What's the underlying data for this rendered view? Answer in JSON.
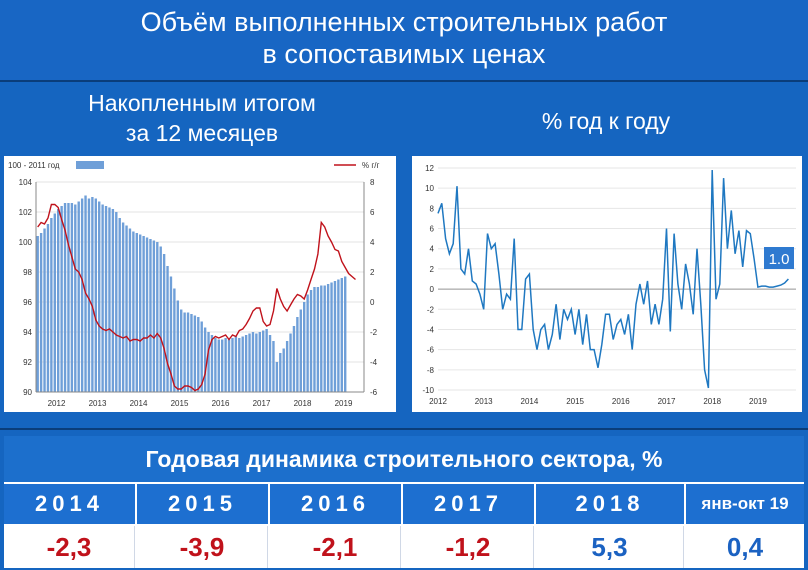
{
  "header": {
    "title_line1": "Объём выполненных строительных работ",
    "title_line2": "в сопоставимых ценах"
  },
  "left_panel": {
    "subtitle_line1": "Накопленным итогом",
    "subtitle_line2": "за 12 месяцев"
  },
  "right_panel": {
    "subtitle": "% год к году"
  },
  "colors": {
    "background": "#1565c0",
    "bar_fill": "#6f9fd8",
    "red_line": "#c0121b",
    "blue_line": "#1f78c1",
    "badge": "#2f7ad0",
    "negative_value": "#c0121b",
    "positive_value": "#1b62c2"
  },
  "chart_data": [
    {
      "type": "bar",
      "legend_left": "100 - 2011 год",
      "legend_right": "% г/г",
      "x_tick_labels": [
        "2012",
        "2013",
        "2014",
        "2015",
        "2016",
        "2017",
        "2018",
        "2019"
      ],
      "left_axis": {
        "ylim": [
          90,
          104
        ],
        "ticks": [
          "90",
          "92",
          "94",
          "96",
          "98",
          "100",
          "102",
          "104"
        ]
      },
      "right_axis": {
        "ylim": [
          -6,
          8
        ],
        "ticks": [
          "-6",
          "-4",
          "-2",
          "0",
          "2",
          "4",
          "6",
          "8"
        ]
      },
      "grid": true,
      "bars": {
        "name": "100 - 2011 год",
        "start": "2012-01",
        "frequency": "monthly",
        "values": [
          100.4,
          100.6,
          100.9,
          101.2,
          101.6,
          101.9,
          102.2,
          102.4,
          102.6,
          102.6,
          102.6,
          102.5,
          102.7,
          102.9,
          103.1,
          102.9,
          103.0,
          102.9,
          102.7,
          102.5,
          102.4,
          102.3,
          102.2,
          102.0,
          101.6,
          101.3,
          101.1,
          100.9,
          100.7,
          100.6,
          100.5,
          100.4,
          100.3,
          100.2,
          100.1,
          100.0,
          99.7,
          99.2,
          98.4,
          97.7,
          96.9,
          96.1,
          95.5,
          95.3,
          95.3,
          95.2,
          95.1,
          95.0,
          94.7,
          94.3,
          94.0,
          93.8,
          93.6,
          93.5,
          93.5,
          93.6,
          93.5,
          93.6,
          93.7,
          93.6,
          93.7,
          93.8,
          93.9,
          94.0,
          93.9,
          94.0,
          94.1,
          94.2,
          93.8,
          93.4,
          92.0,
          92.6,
          92.9,
          93.4,
          93.9,
          94.4,
          95.0,
          95.5,
          96.0,
          96.5,
          96.8,
          97.0,
          97.0,
          97.1,
          97.1,
          97.2,
          97.3,
          97.4,
          97.5,
          97.6,
          97.7
        ]
      },
      "line": {
        "name": "% г/г",
        "start": "2012-01",
        "frequency": "monthly",
        "values": [
          5.0,
          5.3,
          5.2,
          5.6,
          6.5,
          6.5,
          6.3,
          5.5,
          4.8,
          3.8,
          3.0,
          2.2,
          2.0,
          1.5,
          0.6,
          0.2,
          -0.3,
          -1.2,
          -1.6,
          -1.8,
          -1.9,
          -1.8,
          -2.0,
          -2.2,
          -2.3,
          -2.4,
          -2.3,
          -2.6,
          -2.5,
          -2.5,
          -2.6,
          -2.4,
          -2.4,
          -2.2,
          -2.4,
          -2.1,
          -2.4,
          -3.1,
          -4.1,
          -4.8,
          -5.6,
          -5.8,
          -5.8,
          -5.6,
          -5.6,
          -5.7,
          -5.9,
          -5.8,
          -5.5,
          -4.8,
          -3.2,
          -2.5,
          -2.3,
          -2.4,
          -2.3,
          -2.2,
          -2.5,
          -2.2,
          -2.3,
          -1.9,
          -1.8,
          -1.5,
          -1.1,
          -0.6,
          -0.4,
          -0.4,
          -1.3,
          -1.6,
          -1.5,
          -0.6,
          0.9,
          0.2,
          -0.3,
          -0.6,
          -0.2,
          0.2,
          0.5,
          0.4,
          0.2,
          0.8,
          1.5,
          2.2,
          3.2,
          5.3,
          5.0,
          4.4,
          4.0,
          3.5,
          3.4,
          2.7,
          2.3,
          1.9,
          1.7,
          1.5
        ]
      }
    },
    {
      "type": "line",
      "x_tick_labels": [
        "2012",
        "2013",
        "2014",
        "2015",
        "2016",
        "2017",
        "2018",
        "2019"
      ],
      "y_ticks": [
        "-10",
        "-8",
        "-6",
        "-4",
        "-2",
        "0",
        "2",
        "4",
        "6",
        "8",
        "10",
        "12"
      ],
      "ylim": [
        -10,
        12
      ],
      "grid": true,
      "start": "2012-01",
      "frequency": "monthly",
      "values": [
        7.5,
        8.5,
        5.0,
        3.5,
        4.5,
        10.2,
        2.0,
        1.5,
        4.0,
        0.8,
        0.5,
        -0.5,
        -2.0,
        5.5,
        4.0,
        4.5,
        1.5,
        -2.0,
        -0.5,
        -1.0,
        5.0,
        -4.0,
        -4.0,
        1.0,
        1.5,
        -4.0,
        -6.0,
        -4.0,
        -3.5,
        -6.0,
        -4.5,
        -1.5,
        -5.0,
        -2.0,
        -3.0,
        -2.0,
        -4.5,
        -2.0,
        -5.5,
        -2.5,
        -6.0,
        -6.0,
        -7.8,
        -5.5,
        -2.5,
        -2.5,
        -5.0,
        -3.5,
        -3.0,
        -4.5,
        -2.5,
        -6.0,
        -1.5,
        0.5,
        -1.5,
        0.8,
        -3.5,
        -1.5,
        -3.5,
        -1.0,
        6.0,
        -4.2,
        5.5,
        0.5,
        -2.0,
        2.5,
        0.5,
        -2.5,
        4.0,
        -1.5,
        -8.0,
        -9.8,
        11.8,
        -1.0,
        0.5,
        11.0,
        4.0,
        7.8,
        3.5,
        5.8,
        2.2,
        5.8,
        5.5,
        3.0,
        0.2,
        0.3,
        0.3,
        0.2,
        0.2,
        0.3,
        0.4,
        0.6,
        1.0
      ],
      "annotation": "1.0"
    }
  ],
  "table": {
    "title": "Годовая динамика строительного сектора, %",
    "columns": [
      {
        "label": "2014",
        "value": "-2,3",
        "sign": "neg"
      },
      {
        "label": "2015",
        "value": "-3,9",
        "sign": "neg"
      },
      {
        "label": "2016",
        "value": "-2,1",
        "sign": "neg"
      },
      {
        "label": "2017",
        "value": "-1,2",
        "sign": "neg"
      },
      {
        "label": "2018",
        "value": "5,3",
        "sign": "pos"
      },
      {
        "label": "янв-окт 19",
        "value": "0,4",
        "sign": "pos"
      }
    ]
  }
}
